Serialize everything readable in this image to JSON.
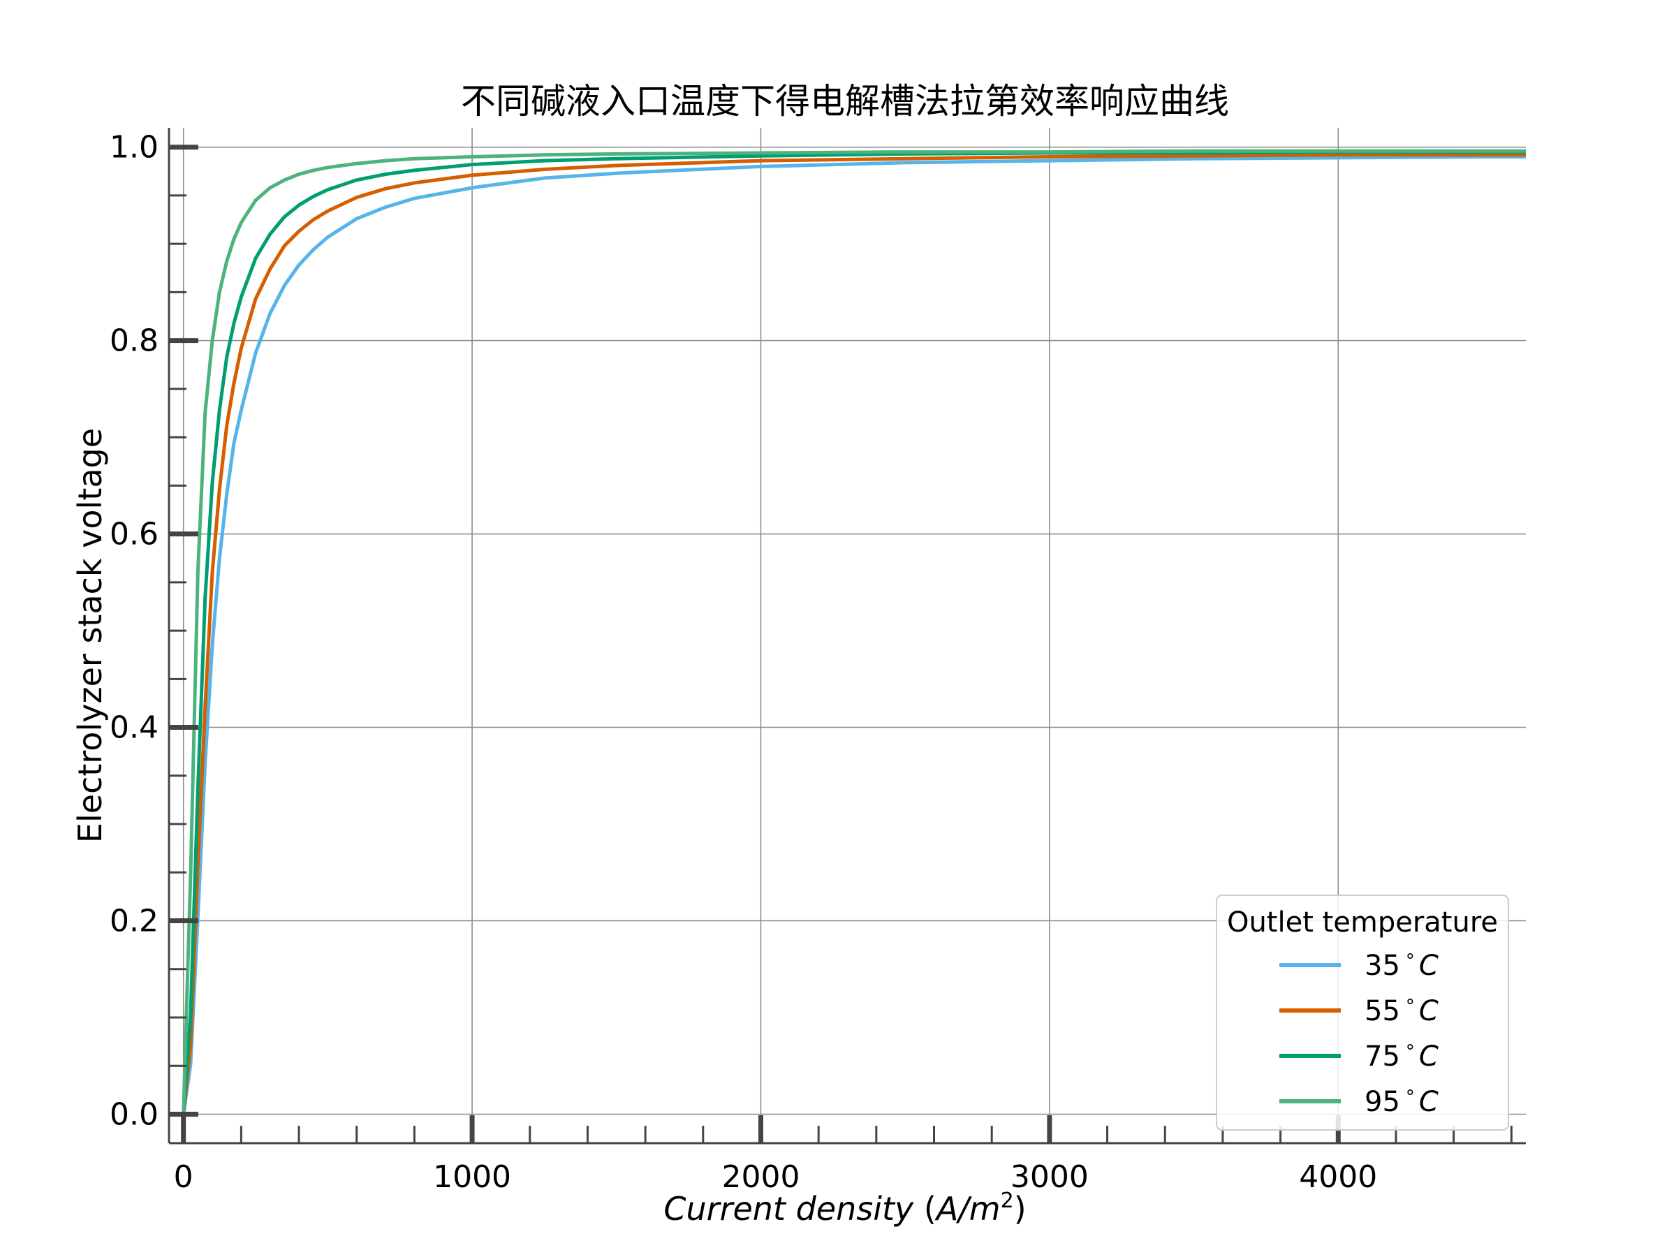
{
  "chart_data": {
    "type": "line",
    "title": "不同碱液入口温度下得电解槽法拉第效率响应曲线",
    "xlabel": "Current density (A/m²)",
    "xlabel_parts": {
      "text": "Current density ",
      "open": "(",
      "unit": "A/m",
      "sup": "2",
      "close": ")"
    },
    "ylabel": "Electrolyzer stack voltage",
    "xlim": [
      -50,
      4650
    ],
    "ylim": [
      -0.03,
      1.02
    ],
    "x_major_ticks": [
      0,
      1000,
      2000,
      3000,
      4000
    ],
    "x_tick_labels": [
      "0",
      "1000",
      "2000",
      "3000",
      "4000"
    ],
    "y_major_ticks": [
      0.0,
      0.2,
      0.4,
      0.6,
      0.8,
      1.0
    ],
    "y_tick_labels": [
      "0.0",
      "0.2",
      "0.4",
      "0.6",
      "0.8",
      "1.0"
    ],
    "grid": true,
    "legend": {
      "title": "Outlet temperature",
      "placement": "lower-right"
    },
    "x": [
      0,
      25,
      50,
      75,
      100,
      125,
      150,
      175,
      200,
      250,
      300,
      350,
      400,
      450,
      500,
      600,
      700,
      800,
      1000,
      1250,
      1500,
      2000,
      2500,
      3000,
      3500,
      4000,
      4500,
      4650
    ],
    "series": [
      {
        "name": "35°C",
        "label_num": "35",
        "label_deg": "°",
        "label_unit": "C",
        "color": "#56B4E9",
        "values": [
          0.0,
          0.052,
          0.203,
          0.363,
          0.485,
          0.575,
          0.641,
          0.694,
          0.728,
          0.787,
          0.828,
          0.857,
          0.878,
          0.894,
          0.907,
          0.926,
          0.938,
          0.947,
          0.958,
          0.968,
          0.973,
          0.98,
          0.984,
          0.986,
          0.988,
          0.989,
          0.99,
          0.99
        ]
      },
      {
        "name": "55°C",
        "label_num": "55",
        "label_deg": "°",
        "label_unit": "C",
        "color": "#D55E00",
        "values": [
          0.0,
          0.072,
          0.258,
          0.42,
          0.56,
          0.646,
          0.712,
          0.756,
          0.792,
          0.843,
          0.874,
          0.898,
          0.913,
          0.925,
          0.934,
          0.948,
          0.957,
          0.963,
          0.971,
          0.977,
          0.981,
          0.986,
          0.988,
          0.99,
          0.991,
          0.992,
          0.992,
          0.992
        ]
      },
      {
        "name": "75°C",
        "label_num": "75",
        "label_deg": "°",
        "label_unit": "C",
        "color": "#009E73",
        "values": [
          0.0,
          0.105,
          0.335,
          0.533,
          0.653,
          0.728,
          0.783,
          0.818,
          0.845,
          0.885,
          0.91,
          0.928,
          0.94,
          0.949,
          0.956,
          0.966,
          0.972,
          0.976,
          0.982,
          0.986,
          0.988,
          0.991,
          0.993,
          0.994,
          0.994,
          0.995,
          0.995,
          0.995
        ]
      },
      {
        "name": "95°C",
        "label_num": "95",
        "label_deg": "°",
        "label_unit": "C",
        "color": "#4DB37D",
        "values": [
          0.0,
          0.25,
          0.56,
          0.725,
          0.8,
          0.85,
          0.882,
          0.905,
          0.922,
          0.945,
          0.958,
          0.966,
          0.972,
          0.976,
          0.979,
          0.983,
          0.986,
          0.988,
          0.99,
          0.992,
          0.993,
          0.994,
          0.995,
          0.995,
          0.996,
          0.996,
          0.996,
          0.996
        ]
      }
    ]
  }
}
